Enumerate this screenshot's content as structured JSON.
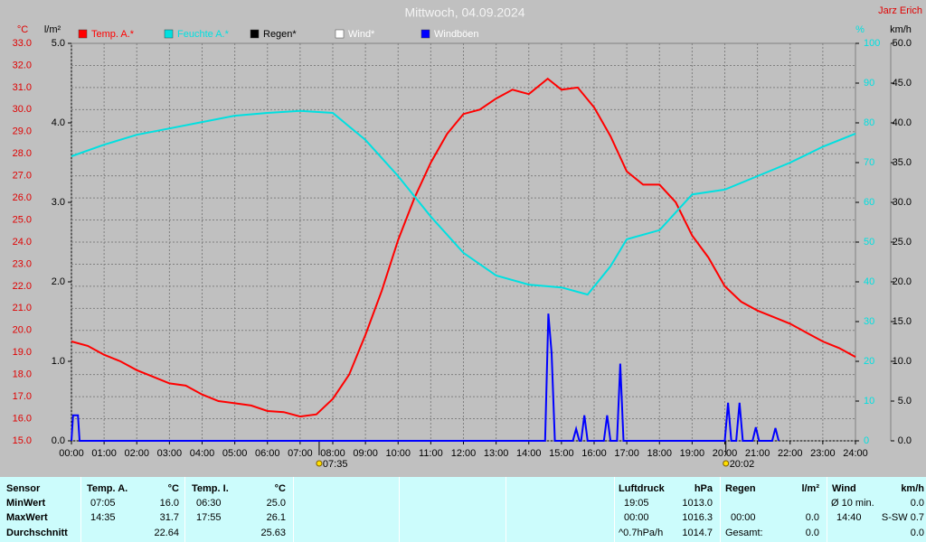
{
  "chart_data": {
    "type": "line",
    "title": "Mittwoch, 04.09.2024",
    "author": "Jarz Erich",
    "grid": true,
    "ylabel": "°C",
    "ycolor": "#e00000",
    "ylim": [
      15,
      33
    ],
    "yticks": [
      {
        "value": 15,
        "label": "15.0"
      },
      {
        "value": 16,
        "label": "16.0"
      },
      {
        "value": 17,
        "label": "17.0"
      },
      {
        "value": 18,
        "label": "18.0"
      },
      {
        "value": 19,
        "label": "19.0"
      },
      {
        "value": 20,
        "label": "20.0"
      },
      {
        "value": 21,
        "label": "21.0"
      },
      {
        "value": 22,
        "label": "22.0"
      },
      {
        "value": 23,
        "label": "23.0"
      },
      {
        "value": 24,
        "label": "24.0"
      },
      {
        "value": 25,
        "label": "25.0"
      },
      {
        "value": 26,
        "label": "26.0"
      },
      {
        "value": 27,
        "label": "27.0"
      },
      {
        "value": 28,
        "label": "28.0"
      },
      {
        "value": 29,
        "label": "29.0"
      },
      {
        "value": 30,
        "label": "30.0"
      },
      {
        "value": 31,
        "label": "31.0"
      },
      {
        "value": 32,
        "label": "32.0"
      },
      {
        "value": 33,
        "label": "33.0"
      }
    ],
    "y4label": "l/m²",
    "y4color": "#000000",
    "y4lim": [
      0,
      5
    ],
    "y4ticks": [
      {
        "value": 0,
        "label": "0.0"
      },
      {
        "value": 1,
        "label": "1.0"
      },
      {
        "value": 2,
        "label": "2.0"
      },
      {
        "value": 3,
        "label": "3.0"
      },
      {
        "value": 4,
        "label": "4.0"
      },
      {
        "value": 5,
        "label": "5.0"
      }
    ],
    "y2label": "%",
    "y2color": "#00e0e0",
    "y2lim": [
      0,
      100
    ],
    "y2ticks": [
      0,
      10,
      20,
      30,
      40,
      50,
      60,
      70,
      80,
      90,
      100
    ],
    "y3label": "km/h",
    "y3color": "#000000",
    "y3lim": [
      0,
      50
    ],
    "y3ticks": [
      {
        "value": 0,
        "label": "0.0"
      },
      {
        "value": 5,
        "label": "5.0"
      },
      {
        "value": 10,
        "label": "10.0"
      },
      {
        "value": 15,
        "label": "15.0"
      },
      {
        "value": 20,
        "label": "20.0"
      },
      {
        "value": 25,
        "label": "25.0"
      },
      {
        "value": 30,
        "label": "30.0"
      },
      {
        "value": 35,
        "label": "35.0"
      },
      {
        "value": 40,
        "label": "40.0"
      },
      {
        "value": 45,
        "label": "45.0"
      },
      {
        "value": 50,
        "label": "50.0"
      }
    ],
    "xlim": [
      0,
      24
    ],
    "xticks": [
      {
        "value": 0,
        "label": "00:00"
      },
      {
        "value": 1,
        "label": "01:00"
      },
      {
        "value": 2,
        "label": "02:00"
      },
      {
        "value": 3,
        "label": "03:00"
      },
      {
        "value": 4,
        "label": "04:00"
      },
      {
        "value": 5,
        "label": "05:00"
      },
      {
        "value": 6,
        "label": "06:00"
      },
      {
        "value": 7,
        "label": "07:00"
      },
      {
        "value": 8,
        "label": "08:00"
      },
      {
        "value": 9,
        "label": "09:00"
      },
      {
        "value": 10,
        "label": "10:00"
      },
      {
        "value": 11,
        "label": "11:00"
      },
      {
        "value": 12,
        "label": "12:00"
      },
      {
        "value": 13,
        "label": "13:00"
      },
      {
        "value": 14,
        "label": "14:00"
      },
      {
        "value": 15,
        "label": "15:00"
      },
      {
        "value": 16,
        "label": "16:00"
      },
      {
        "value": 17,
        "label": "17:00"
      },
      {
        "value": 18,
        "label": "18:00"
      },
      {
        "value": 19,
        "label": "19:00"
      },
      {
        "value": 20,
        "label": "20:00"
      },
      {
        "value": 21,
        "label": "21:00"
      },
      {
        "value": 22,
        "label": "22:00"
      },
      {
        "value": 23,
        "label": "23:00"
      },
      {
        "value": 24,
        "label": "24:00"
      }
    ],
    "annotations": [
      {
        "text": "07:35",
        "x": 7.583
      },
      {
        "text": "20:02",
        "x": 20.033
      }
    ],
    "series": [
      {
        "name": "Temp. A.*",
        "color": "#ff0000",
        "axis": "y",
        "x": [
          0,
          0.5,
          1,
          1.5,
          2,
          2.5,
          3,
          3.5,
          4,
          4.5,
          5,
          5.5,
          6,
          6.5,
          7,
          7.5,
          8,
          8.5,
          9,
          9.5,
          10,
          10.5,
          11,
          11.5,
          12,
          12.5,
          13,
          13.5,
          14,
          14.58,
          15,
          15.5,
          16,
          16.5,
          17,
          17.5,
          18,
          18.5,
          19,
          19.5,
          20,
          20.5,
          21,
          21.5,
          22,
          22.5,
          23,
          23.5,
          24
        ],
        "values": [
          19.5,
          19.3,
          18.9,
          18.6,
          18.2,
          17.9,
          17.6,
          17.5,
          17.1,
          16.8,
          16.7,
          16.6,
          16.35,
          16.3,
          16.1,
          16.2,
          16.9,
          18.0,
          19.8,
          21.8,
          24.1,
          26.0,
          27.6,
          28.9,
          29.8,
          30.0,
          30.5,
          30.9,
          30.7,
          31.4,
          30.9,
          31.0,
          30.1,
          28.8,
          27.2,
          26.6,
          26.6,
          25.8,
          24.3,
          23.3,
          22.0,
          21.3,
          20.9,
          20.6,
          20.3,
          19.9,
          19.5,
          19.2,
          18.8
        ]
      },
      {
        "name": "Feuchte A.*",
        "color": "#00e0e0",
        "axis": "y2",
        "x": [
          0,
          1,
          2,
          3,
          4,
          5,
          6,
          7,
          8,
          9,
          10,
          11,
          12,
          13,
          14,
          15,
          15.8,
          16.5,
          17,
          18,
          19,
          20,
          21,
          22,
          23,
          24
        ],
        "values": [
          71.6,
          74.5,
          77,
          78.6,
          80.2,
          81.8,
          82.5,
          83,
          82.5,
          75.7,
          66.6,
          56.4,
          47.3,
          41.6,
          39.3,
          38.6,
          36.8,
          43.9,
          50.7,
          53,
          62,
          63.2,
          66.6,
          70,
          74,
          77.3
        ]
      },
      {
        "name": "Regen*",
        "color": "#000000",
        "axis": "y4",
        "x": [],
        "values": []
      },
      {
        "name": "Wind*",
        "color": "#ffffff",
        "axis": "y3",
        "x": [],
        "values": []
      },
      {
        "name": "Windböen",
        "color": "#0000ff",
        "axis": "y3",
        "x": [
          0,
          0.05,
          0.2,
          0.25,
          14.5,
          14.6,
          14.7,
          14.8,
          15.35,
          15.45,
          15.55,
          15.6,
          15.7,
          15.8,
          16.3,
          16.4,
          16.5,
          16.7,
          16.8,
          16.9,
          20.0,
          20.1,
          20.2,
          20.35,
          20.45,
          20.55,
          20.85,
          20.95,
          21.05,
          21.45,
          21.55,
          21.65
        ],
        "values": [
          0,
          3.2,
          3.2,
          0,
          0,
          16,
          11,
          0,
          0,
          1.5,
          0,
          0,
          3.2,
          0,
          0,
          3.2,
          0,
          0,
          9.7,
          0,
          0,
          4.8,
          0,
          0,
          4.8,
          0,
          0,
          1.7,
          0,
          0,
          1.6,
          0
        ]
      }
    ]
  },
  "table": {
    "sensor": {
      "header": "Sensor",
      "rows": [
        "MinWert",
        "MaxWert",
        "Durchschnitt"
      ]
    },
    "temp_a": {
      "header": "Temp. A.",
      "unit": "°C",
      "rows": [
        [
          "07:05",
          "16.0"
        ],
        [
          "14:35",
          "31.7"
        ],
        [
          null,
          "22.64"
        ]
      ]
    },
    "temp_i": {
      "header": "Temp. I.",
      "unit": "°C",
      "rows": [
        [
          "06:30",
          "25.0"
        ],
        [
          "17:55",
          "26.1"
        ],
        [
          null,
          "25.63"
        ]
      ]
    },
    "luftdruck": {
      "header": "Luftdruck",
      "unit": "hPa",
      "rows": [
        [
          "19:05",
          "1013.0"
        ],
        [
          "00:00",
          "1016.3"
        ],
        [
          "^0.7hPa/h",
          "1014.7"
        ]
      ]
    },
    "regen": {
      "header": "Regen",
      "unit": "l/m²",
      "rows": [
        [
          null,
          null
        ],
        [
          "00:00",
          "0.0"
        ],
        [
          "Gesamt:",
          "0.0"
        ]
      ]
    },
    "wind": {
      "header": "Wind",
      "unit": "km/h",
      "rows": [
        [
          "Ø 10 min.",
          "0.0"
        ],
        [
          "14:40",
          "S-SW 0.7"
        ],
        [
          null,
          "0.0"
        ]
      ]
    }
  }
}
